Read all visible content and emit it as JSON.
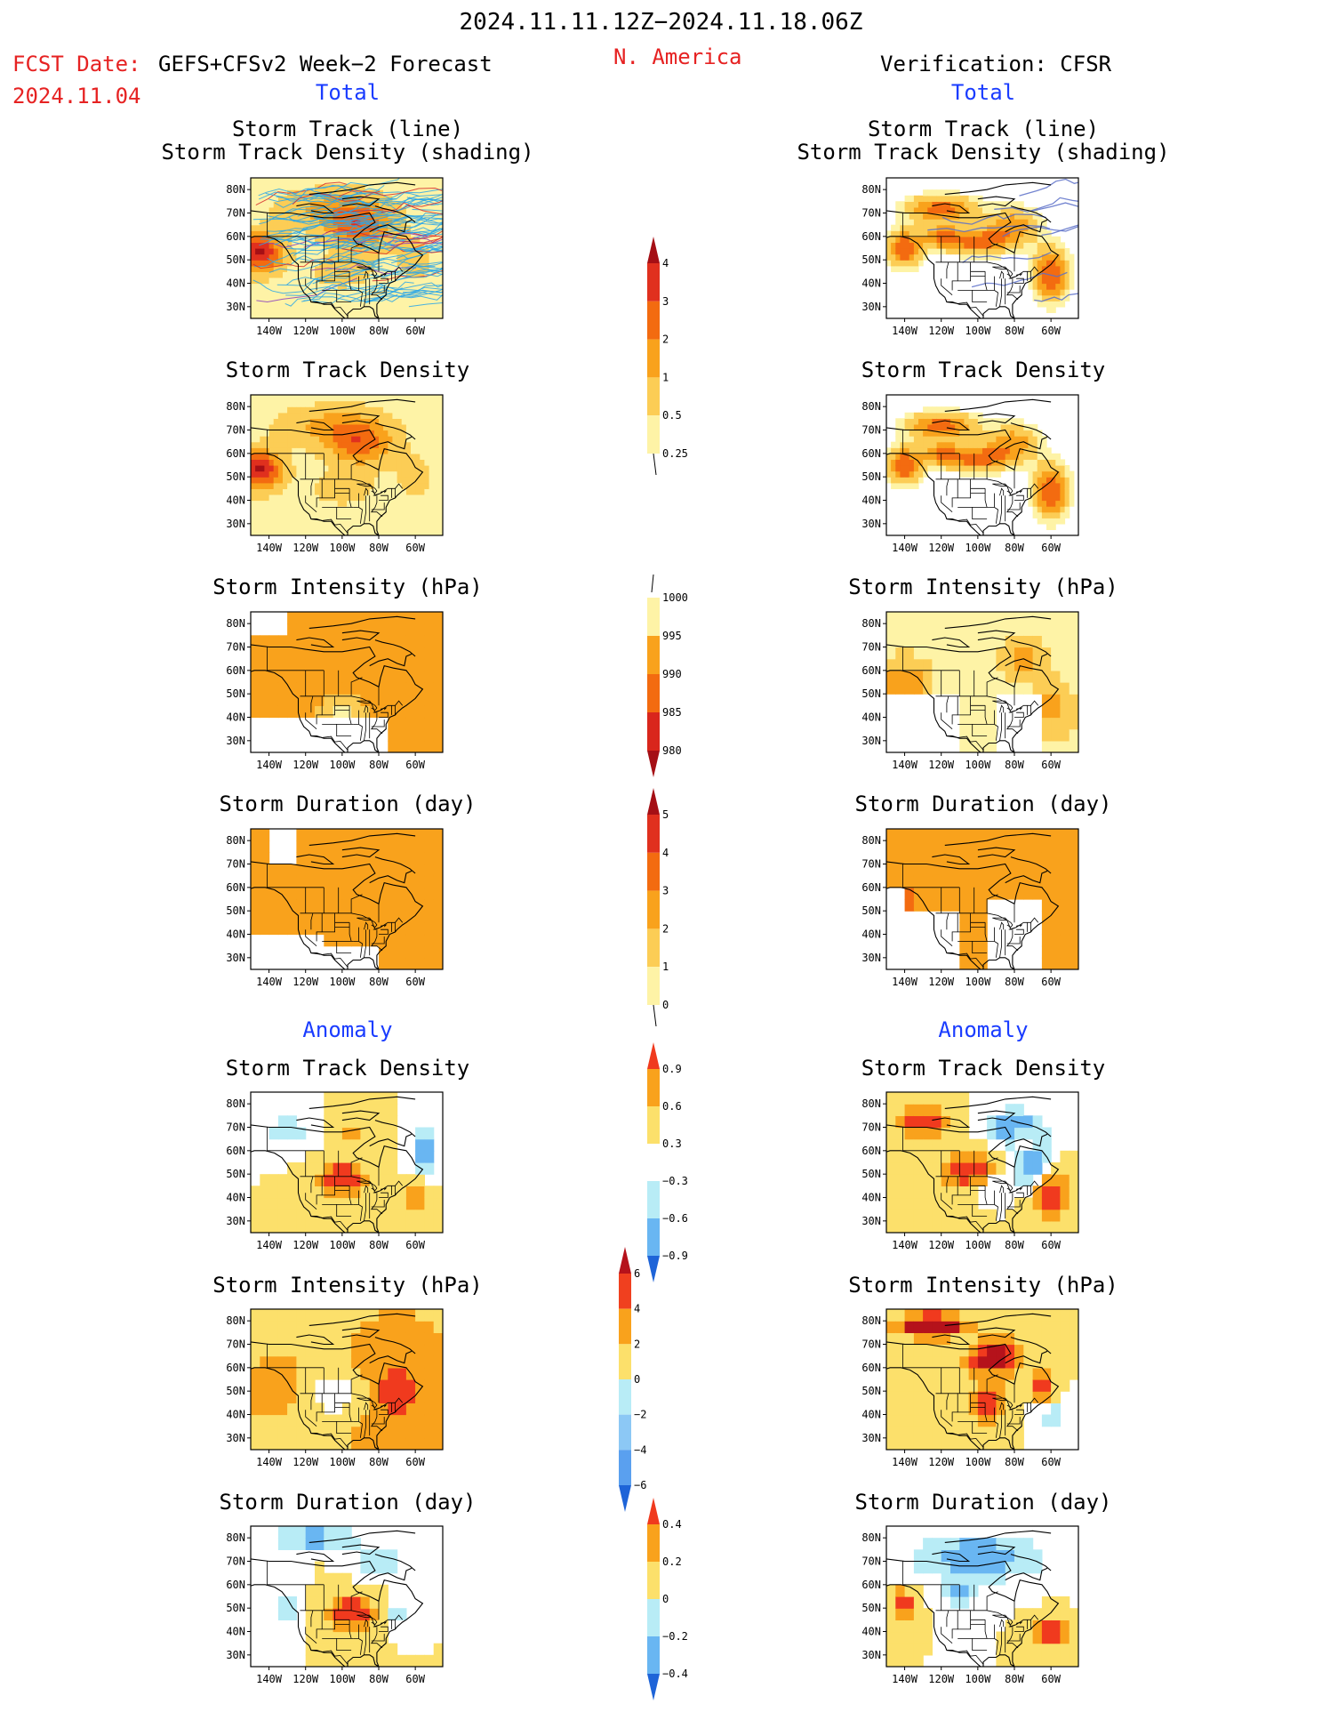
{
  "header": {
    "title": "2024.11.11.12Z−2024.11.18.06Z",
    "fcst_label": "FCST Date:",
    "model": "GEFS+CFSv2 Week−2 Forecast",
    "region": "N. America",
    "verification": "Verification: CFSR",
    "fcst_date": "2024.11.04"
  },
  "sections": {
    "total": "Total",
    "anomaly": "Anomaly"
  },
  "panels": {
    "track_line": "Storm Track (line)",
    "track_shading": "Storm Track Density (shading)",
    "track_density": "Storm Track Density",
    "intensity": "Storm Intensity (hPa)",
    "duration": "Storm Duration (day)"
  },
  "axes": {
    "lat_labels": [
      "80N",
      "70N",
      "60N",
      "50N",
      "40N",
      "30N"
    ],
    "lon_labels": [
      "140W",
      "120W",
      "100W",
      "80W",
      "60W"
    ]
  },
  "colorbars": {
    "density": {
      "labels": [
        "4",
        "3",
        "2",
        "1",
        "0.5",
        "0.25"
      ],
      "colors": [
        "#a50f15",
        "#e0301e",
        "#f36b10",
        "#f9a21c",
        "#fccd55",
        "#fef3a6"
      ]
    },
    "intensity": {
      "labels": [
        "1000",
        "995",
        "990",
        "985",
        "980"
      ],
      "colors": [
        "#fef3a6",
        "#f9a21c",
        "#f36b10",
        "#d9261c",
        "#a50f15"
      ]
    },
    "duration": {
      "labels": [
        "5",
        "4",
        "3",
        "2",
        "1",
        "0"
      ],
      "colors": [
        "#a50f15",
        "#e0301e",
        "#f36b10",
        "#f9a21c",
        "#fccd55",
        "#fef3a6"
      ]
    },
    "density_anom": {
      "labels": [
        "0.9",
        "0.6",
        "0.3",
        "−0.3",
        "−0.6",
        "−0.9"
      ],
      "colors": [
        "#f03a1e",
        "#f9a21c",
        "#fce06b",
        "#ffffff",
        "#b8ecf6",
        "#69b6f2",
        "#1e64d8"
      ]
    },
    "intensity_anom": {
      "labels": [
        "6",
        "4",
        "2",
        "0",
        "−2",
        "−4",
        "−6"
      ],
      "colors": [
        "#b5121b",
        "#f0401f",
        "#f9a21c",
        "#fce06b",
        "#b8ecf6",
        "#8cc8f5",
        "#5aa0ef",
        "#1e64d8"
      ]
    },
    "duration_anom": {
      "labels": [
        "0.4",
        "0.2",
        "0",
        "−0.2",
        "−0.4"
      ],
      "colors": [
        "#f03a1e",
        "#f9a21c",
        "#fce06b",
        "#b8ecf6",
        "#69b6f2",
        "#1e64d8"
      ]
    }
  }
}
